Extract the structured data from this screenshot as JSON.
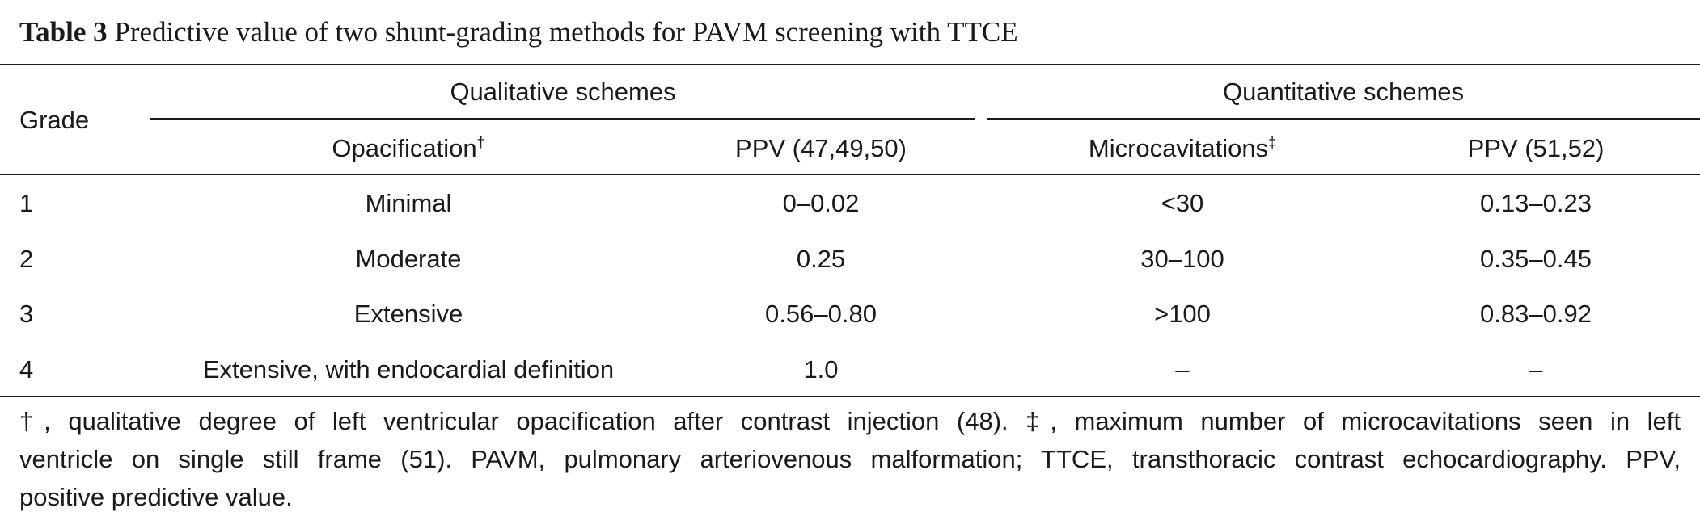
{
  "caption": {
    "label": "Table 3",
    "title": "Predictive value of two shunt-grading methods for PAVM screening with TTCE"
  },
  "header": {
    "grade": "Grade",
    "group_qualitative": "Qualitative schemes",
    "group_quantitative": "Quantitative schemes",
    "col_opacification": "Opacification",
    "col_opacification_mark": "†",
    "col_ppv_qual": "PPV (47,49,50)",
    "col_microcavitations": "Microcavitations",
    "col_microcavitations_mark": "‡",
    "col_ppv_quant": "PPV (51,52)"
  },
  "rows": [
    {
      "grade": "1",
      "opacification": "Minimal",
      "ppv_qual": "0–0.02",
      "microcavitations": "<30",
      "ppv_quant": "0.13–0.23"
    },
    {
      "grade": "2",
      "opacification": "Moderate",
      "ppv_qual": "0.25",
      "microcavitations": "30–100",
      "ppv_quant": "0.35–0.45"
    },
    {
      "grade": "3",
      "opacification": "Extensive",
      "ppv_qual": "0.56–0.80",
      "microcavitations": ">100",
      "ppv_quant": "0.83–0.92"
    },
    {
      "grade": "4",
      "opacification": "Extensive, with endocardial definition",
      "ppv_qual": "1.0",
      "microcavitations": "–",
      "ppv_quant": "–"
    }
  ],
  "footnote": {
    "line1": "†, qualitative degree of left ventricular opacification after contrast injection (48). ‡, maximum number of microcavitations seen in left",
    "line2": "ventricle on single still frame (51). PAVM, pulmonary arteriovenous malformation; TTCE, transthoracic contrast echocardiography. PPV,",
    "line3": "positive predictive value."
  }
}
